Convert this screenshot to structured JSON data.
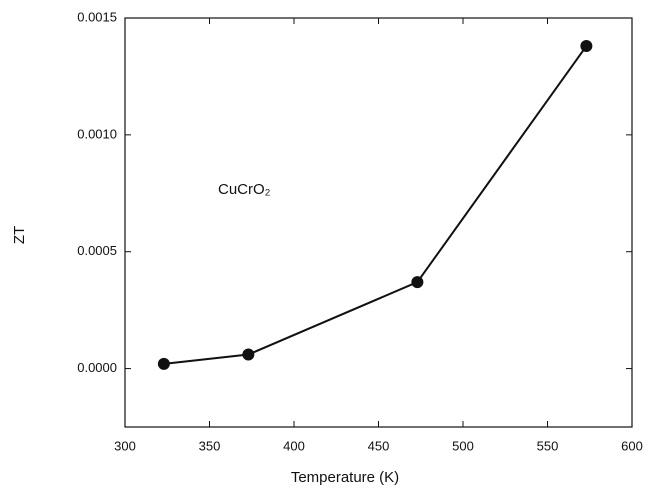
{
  "chart_data": {
    "type": "line",
    "x_label": "Temperature (K)",
    "y_label": "ZT",
    "annotation": "CuCrO₂",
    "x": [
      323,
      373,
      473,
      573
    ],
    "series": [
      {
        "name": "CuCrO₂",
        "color": "#111111",
        "values": [
          2e-05,
          6e-05,
          0.00037,
          0.00138
        ]
      }
    ],
    "xlim": [
      300,
      600
    ],
    "xticks": [
      300,
      350,
      400,
      450,
      500,
      550,
      600
    ],
    "ylim": [
      -0.00025,
      0.0015
    ],
    "yticks": [
      {
        "value": 0,
        "label": "0.0000"
      },
      {
        "value": 0.0005,
        "label": "0.0005"
      },
      {
        "value": 0.001,
        "label": "0.0010"
      },
      {
        "value": 0.0015,
        "label": "0.0015"
      }
    ],
    "grid": false
  }
}
